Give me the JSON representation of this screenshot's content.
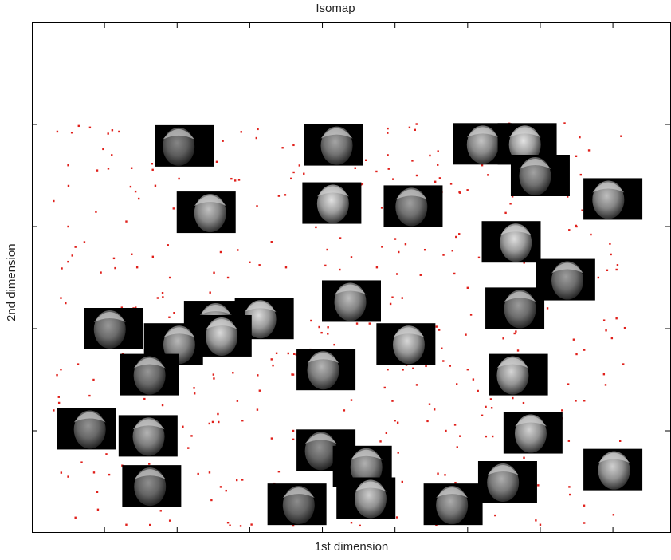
{
  "chart_data": {
    "type": "scatter",
    "title": "Isomap",
    "xlabel": "1st dimension",
    "ylabel": "2nd dimension",
    "xlim": [
      0,
      8.8
    ],
    "ylim": [
      0,
      5
    ],
    "x_ticks": [
      1,
      2,
      3,
      4,
      5,
      6,
      7,
      8
    ],
    "y_ticks": [
      1,
      2,
      3,
      4
    ],
    "tick_labels_shown": false,
    "grid": false,
    "legend": "none",
    "colors": {
      "points": "#e0201b",
      "axes": "#000000",
      "image_background": "#000000"
    },
    "n_points": 420,
    "point_x_range": [
      0.3,
      8.2
    ],
    "point_y_range": [
      0.05,
      4.02
    ],
    "series": [
      {
        "marker": "point",
        "points": [
          [
            0.35,
            3.93
          ],
          [
            0.55,
            3.92
          ],
          [
            0.8,
            3.97
          ],
          [
            1.05,
            3.91
          ],
          [
            1.2,
            3.93
          ],
          [
            3.9,
            3.88
          ],
          [
            4.9,
            3.96
          ],
          [
            5.2,
            3.97
          ],
          [
            6.0,
            3.95
          ],
          [
            0.5,
            3.6
          ],
          [
            0.9,
            3.55
          ],
          [
            1.1,
            3.7
          ],
          [
            0.3,
            3.25
          ],
          [
            0.5,
            3.0
          ],
          [
            1.3,
            3.05
          ],
          [
            1.7,
            3.4
          ],
          [
            2.8,
            3.45
          ],
          [
            3.1,
            3.2
          ],
          [
            3.4,
            3.3
          ],
          [
            4.6,
            3.65
          ],
          [
            4.9,
            3.7
          ],
          [
            5.3,
            3.5
          ],
          [
            6.2,
            3.6
          ],
          [
            0.6,
            2.8
          ],
          [
            0.95,
            2.55
          ],
          [
            1.45,
            2.6
          ],
          [
            1.9,
            2.5
          ],
          [
            2.6,
            2.75
          ],
          [
            3.0,
            2.65
          ],
          [
            3.3,
            2.85
          ],
          [
            3.5,
            2.6
          ],
          [
            4.4,
            2.7
          ],
          [
            4.75,
            2.6
          ],
          [
            5.05,
            2.75
          ],
          [
            6.0,
            2.4
          ],
          [
            7.5,
            3.0
          ],
          [
            0.4,
            2.3
          ],
          [
            0.9,
            2.05
          ],
          [
            1.4,
            2.2
          ],
          [
            1.8,
            2.35
          ],
          [
            2.3,
            2.2
          ],
          [
            2.7,
            2.5
          ],
          [
            3.2,
            2.25
          ],
          [
            3.5,
            2.05
          ],
          [
            4.2,
            2.3
          ],
          [
            4.65,
            2.05
          ],
          [
            5.1,
            2.3
          ],
          [
            5.5,
            1.95
          ],
          [
            6.3,
            2.1
          ],
          [
            7.1,
            2.2
          ],
          [
            7.8,
            2.5
          ],
          [
            8.05,
            2.1
          ],
          [
            0.4,
            1.6
          ],
          [
            0.85,
            1.5
          ],
          [
            1.25,
            1.75
          ],
          [
            2.0,
            1.7
          ],
          [
            2.5,
            1.55
          ],
          [
            3.3,
            1.7
          ],
          [
            3.6,
            1.55
          ],
          [
            4.4,
            1.3
          ],
          [
            4.9,
            1.6
          ],
          [
            5.3,
            1.45
          ],
          [
            6.0,
            1.6
          ],
          [
            6.4,
            1.7
          ],
          [
            7.5,
            1.75
          ],
          [
            7.9,
            1.45
          ],
          [
            0.3,
            1.2
          ],
          [
            0.55,
            0.95
          ],
          [
            1.8,
            1.25
          ],
          [
            2.2,
            0.95
          ],
          [
            2.9,
            1.1
          ],
          [
            3.6,
            1.0
          ],
          [
            4.3,
            1.2
          ],
          [
            5.0,
            1.1
          ],
          [
            5.7,
            1.0
          ],
          [
            6.2,
            1.15
          ],
          [
            7.3,
            1.2
          ],
          [
            8.1,
            0.9
          ],
          [
            0.5,
            0.55
          ],
          [
            0.9,
            0.4
          ],
          [
            2.0,
            0.6
          ],
          [
            2.6,
            0.45
          ],
          [
            3.4,
            0.6
          ],
          [
            4.2,
            0.55
          ],
          [
            5.1,
            0.5
          ],
          [
            5.8,
            0.35
          ],
          [
            7.4,
            0.45
          ],
          [
            8.0,
            0.55
          ],
          [
            0.6,
            0.15
          ],
          [
            1.3,
            0.08
          ],
          [
            1.9,
            0.12
          ],
          [
            2.7,
            0.1
          ],
          [
            3.6,
            0.07
          ],
          [
            4.4,
            0.1
          ],
          [
            6.1,
            0.12
          ],
          [
            7.0,
            0.08
          ]
        ]
      }
    ],
    "face_thumbnails": [
      {
        "x": 2.1,
        "y": 3.79
      },
      {
        "x": 4.15,
        "y": 3.8
      },
      {
        "x": 6.2,
        "y": 3.81
      },
      {
        "x": 6.82,
        "y": 3.81
      },
      {
        "x": 7.0,
        "y": 3.5
      },
      {
        "x": 2.4,
        "y": 3.14
      },
      {
        "x": 4.13,
        "y": 3.23
      },
      {
        "x": 5.25,
        "y": 3.2
      },
      {
        "x": 8.0,
        "y": 3.27
      },
      {
        "x": 6.6,
        "y": 2.85
      },
      {
        "x": 7.35,
        "y": 2.48
      },
      {
        "x": 4.4,
        "y": 2.27
      },
      {
        "x": 3.2,
        "y": 2.1
      },
      {
        "x": 6.65,
        "y": 2.2
      },
      {
        "x": 2.5,
        "y": 2.07
      },
      {
        "x": 2.62,
        "y": 1.93
      },
      {
        "x": 1.12,
        "y": 2.0
      },
      {
        "x": 1.95,
        "y": 1.85
      },
      {
        "x": 5.15,
        "y": 1.85
      },
      {
        "x": 1.62,
        "y": 1.55
      },
      {
        "x": 4.05,
        "y": 1.6
      },
      {
        "x": 6.7,
        "y": 1.55
      },
      {
        "x": 0.75,
        "y": 1.02
      },
      {
        "x": 1.6,
        "y": 0.95
      },
      {
        "x": 6.9,
        "y": 0.98
      },
      {
        "x": 4.05,
        "y": 0.81
      },
      {
        "x": 4.55,
        "y": 0.65
      },
      {
        "x": 8.0,
        "y": 0.62
      },
      {
        "x": 1.65,
        "y": 0.46
      },
      {
        "x": 6.55,
        "y": 0.5
      },
      {
        "x": 4.6,
        "y": 0.34
      },
      {
        "x": 3.65,
        "y": 0.28
      },
      {
        "x": 5.8,
        "y": 0.28
      }
    ]
  }
}
